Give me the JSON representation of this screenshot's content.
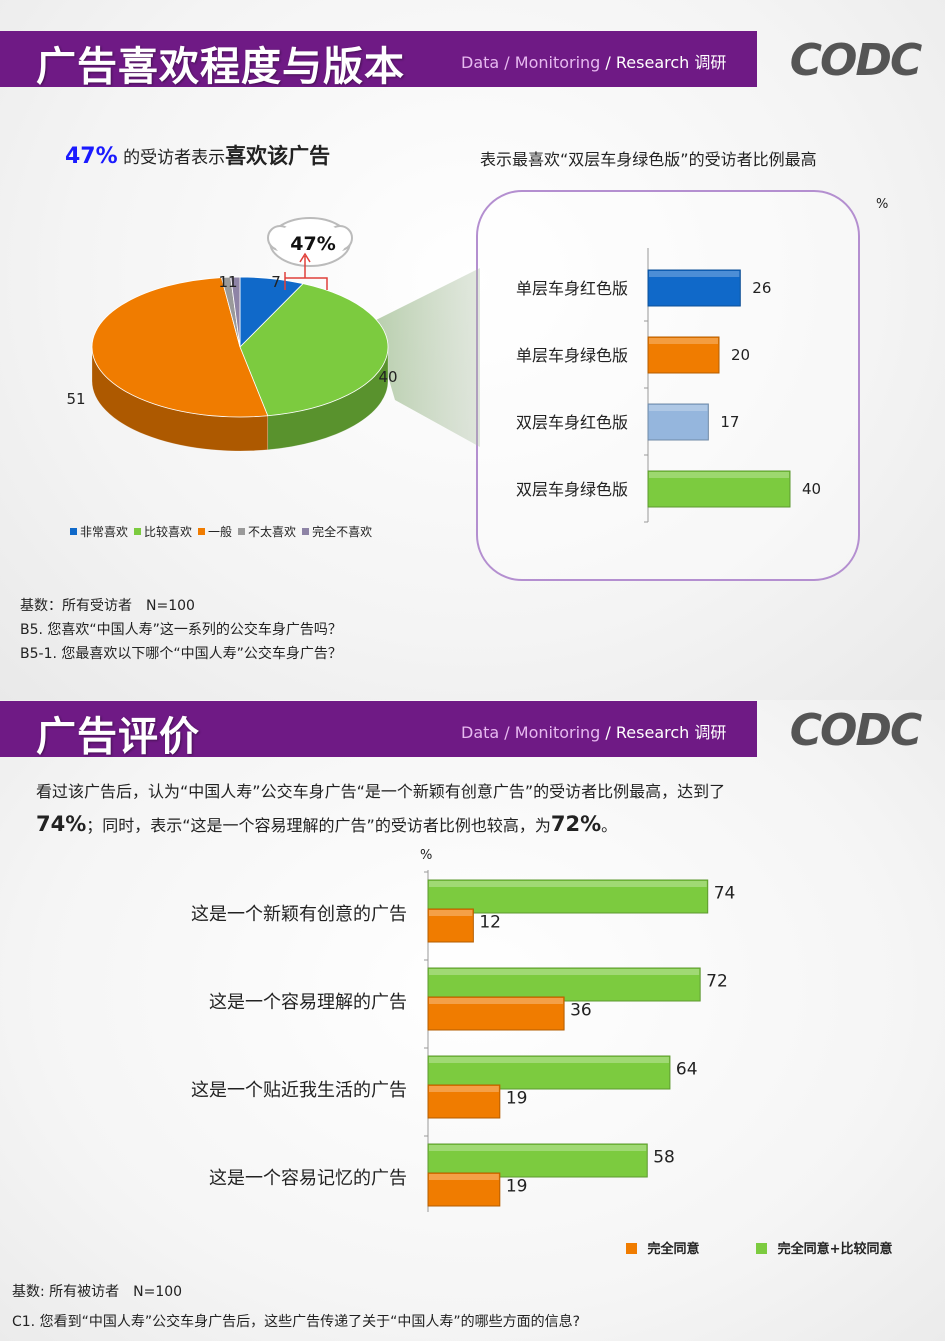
{
  "section1": {
    "title": "广告喜欢程度与版本",
    "tagline_dm": "Data / Monitoring",
    "tagline_rs": "/ Research 调研",
    "logo": "CODC",
    "headline_pct": "47%",
    "headline_mid": "的受访者表示",
    "headline_bold": "喜欢该广告",
    "right_headline": "表示最喜欢“双层车身绿色版”的受访者比例最高",
    "unit": "%",
    "cloud_label": "47%",
    "notes": [
      "基数：所有受访者　N=100",
      "B5. 您喜欢“中国人寿”这一系列的公交车身广告吗？",
      "B5-1. 您最喜欢以下哪个“中国人寿”公交车身广告？"
    ]
  },
  "section2": {
    "title": "广告评价",
    "tagline_dm": "Data / Monitoring",
    "tagline_rs": "/ Research 调研",
    "logo": "CODC",
    "summary_line1": "看过该广告后，认为“中国人寿”公交车身广告“是一个新颖有创意广告”的受访者比例最高，达到了",
    "summary_pct1": "74%",
    "summary_mid": "；同时，表示“这是一个容易理解的广告”的受访者比例也较高，为",
    "summary_pct2": "72%",
    "summary_end": "。",
    "unit": "%",
    "notes": [
      "基数: 所有被访者　N=100",
      "C1. 您看到“中国人寿”公交车身广告后，这些广告传递了关于“中国人寿”的哪些方面的信息?"
    ]
  },
  "colors": {
    "banner": "#6f1a85",
    "blue": "#1069c9",
    "green": "#7ccb3f",
    "orange": "#f07c00",
    "gray": "#9a9a9a",
    "purple_gray": "#8e84a6",
    "light_blue": "#95b6dd",
    "box_border": "#b48fd0"
  },
  "chart_data": [
    {
      "type": "pie",
      "categories": [
        "非常喜欢",
        "比较喜欢",
        "一般",
        "不太喜欢",
        "完全不喜欢"
      ],
      "values": [
        7,
        40,
        51,
        1,
        1
      ],
      "value_labels": [
        "7",
        "40",
        "51",
        "1",
        "1"
      ],
      "legend": "bottom"
    },
    {
      "type": "bar",
      "orientation": "horizontal",
      "categories": [
        "单层车身红色版",
        "单层车身绿色版",
        "双层车身红色版",
        "双层车身绿色版"
      ],
      "values": [
        26,
        20,
        17,
        40
      ],
      "unit": "%"
    },
    {
      "type": "bar",
      "orientation": "horizontal",
      "categories": [
        "这是一个新颖有创意的广告",
        "这是一个容易理解的广告",
        "这是一个贴近我生活的广告",
        "这是一个容易记忆的广告"
      ],
      "series": [
        {
          "name": "完全同意+比较同意",
          "values": [
            74,
            72,
            64,
            58
          ]
        },
        {
          "name": "完全同意",
          "values": [
            12,
            36,
            19,
            19
          ]
        }
      ],
      "legend_order": [
        "完全同意",
        "完全同意+比较同意"
      ],
      "legend": "bottom-right",
      "unit": "%"
    }
  ]
}
